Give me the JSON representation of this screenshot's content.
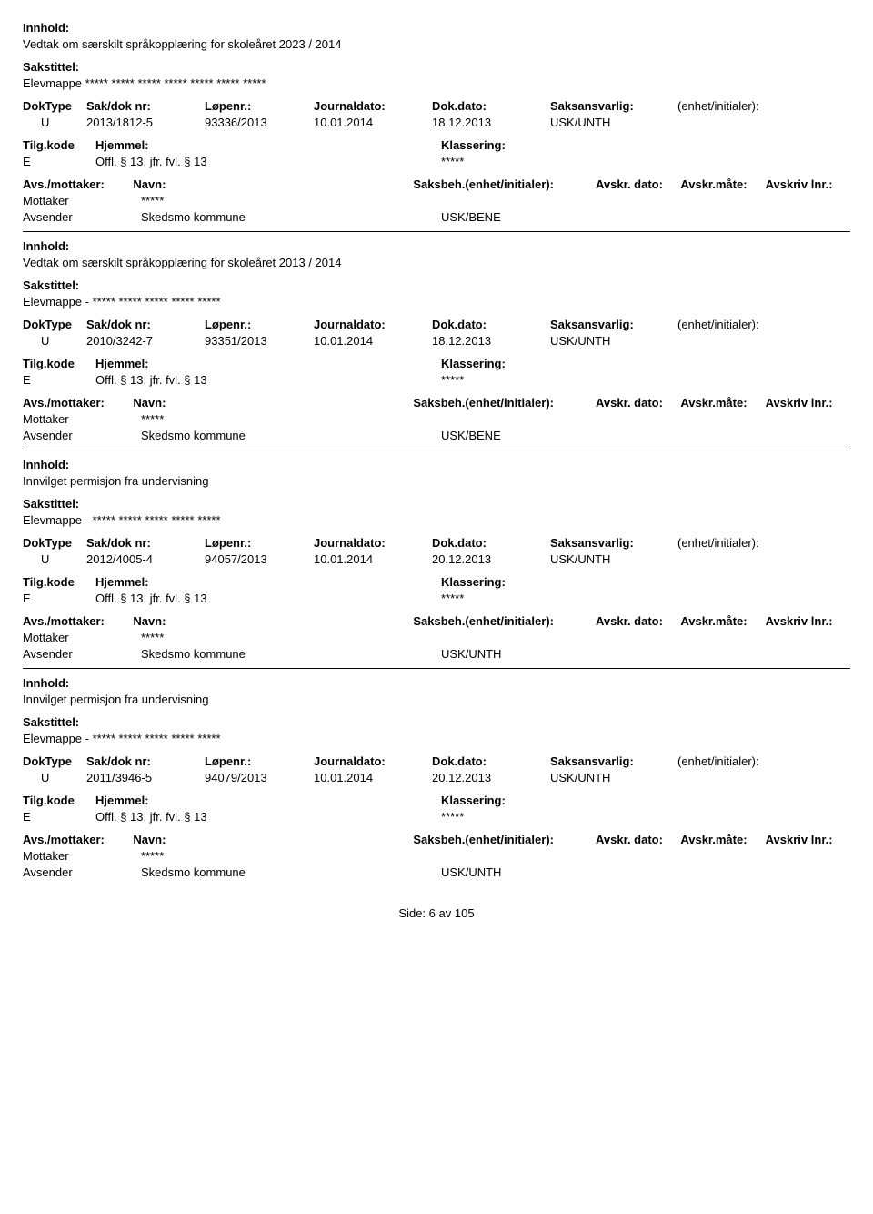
{
  "labels": {
    "innhold": "Innhold:",
    "sakstittel": "Sakstittel:",
    "doktype": "DokType",
    "sakdok": "Sak/dok nr:",
    "lopenr": "Løpenr.:",
    "journaldato": "Journaldato:",
    "dokdato": "Dok.dato:",
    "saksansvarlig": "Saksansvarlig:",
    "enhet": "(enhet/initialer):",
    "tilgkode": "Tilg.kode",
    "hjemmel": "Hjemmel:",
    "klassering": "Klassering:",
    "avsmottaker": "Avs./mottaker:",
    "navn": "Navn:",
    "saksbeh": "Saksbeh.(enhet/initialer):",
    "avskrdato": "Avskr. dato:",
    "avskrmate": "Avskr.måte:",
    "avskrlnr": "Avskriv lnr.:",
    "mottaker": "Mottaker",
    "avsender": "Avsender"
  },
  "records": [
    {
      "innhold": "Vedtak om særskilt språkopplæring for skoleåret 2023 / 2014",
      "sakstittel": "Elevmappe ***** ***** ***** ***** ***** ***** *****",
      "doktype": "U",
      "sakdok": "2013/1812-5",
      "lopenr": "93336/2013",
      "journaldato": "10.01.2014",
      "dokdato": "18.12.2013",
      "saksansvarlig": "USK/UNTH",
      "enhet": "",
      "tilgkode": "E",
      "hjemmel": "Offl. § 13, jfr. fvl. § 13",
      "klassering": "*****",
      "mottaker_navn": "*****",
      "avsender_navn": "Skedsmo kommune",
      "avsender_enhet": "USK/BENE"
    },
    {
      "innhold": "Vedtak om særskilt språkopplæring for skoleåret 2013 / 2014",
      "sakstittel": "Elevmappe - ***** ***** ***** ***** *****",
      "doktype": "U",
      "sakdok": "2010/3242-7",
      "lopenr": "93351/2013",
      "journaldato": "10.01.2014",
      "dokdato": "18.12.2013",
      "saksansvarlig": "USK/UNTH",
      "enhet": "",
      "tilgkode": "E",
      "hjemmel": "Offl. § 13, jfr. fvl. § 13",
      "klassering": "*****",
      "mottaker_navn": "*****",
      "avsender_navn": "Skedsmo kommune",
      "avsender_enhet": "USK/BENE"
    },
    {
      "innhold": "Innvilget permisjon fra undervisning",
      "sakstittel": "Elevmappe - ***** ***** ***** ***** *****",
      "doktype": "U",
      "sakdok": "2012/4005-4",
      "lopenr": "94057/2013",
      "journaldato": "10.01.2014",
      "dokdato": "20.12.2013",
      "saksansvarlig": "USK/UNTH",
      "enhet": "",
      "tilgkode": "E",
      "hjemmel": "Offl. § 13, jfr. fvl. § 13",
      "klassering": "*****",
      "mottaker_navn": "*****",
      "avsender_navn": "Skedsmo kommune",
      "avsender_enhet": "USK/UNTH"
    },
    {
      "innhold": "Innvilget permisjon fra undervisning",
      "sakstittel": "Elevmappe - ***** ***** ***** ***** *****",
      "doktype": "U",
      "sakdok": "2011/3946-5",
      "lopenr": "94079/2013",
      "journaldato": "10.01.2014",
      "dokdato": "20.12.2013",
      "saksansvarlig": "USK/UNTH",
      "enhet": "",
      "tilgkode": "E",
      "hjemmel": "Offl. § 13, jfr. fvl. § 13",
      "klassering": "*****",
      "mottaker_navn": "*****",
      "avsender_navn": "Skedsmo kommune",
      "avsender_enhet": "USK/UNTH"
    }
  ],
  "footer": {
    "prefix": "Side:",
    "page": "6",
    "sep": "av",
    "total": "105"
  }
}
